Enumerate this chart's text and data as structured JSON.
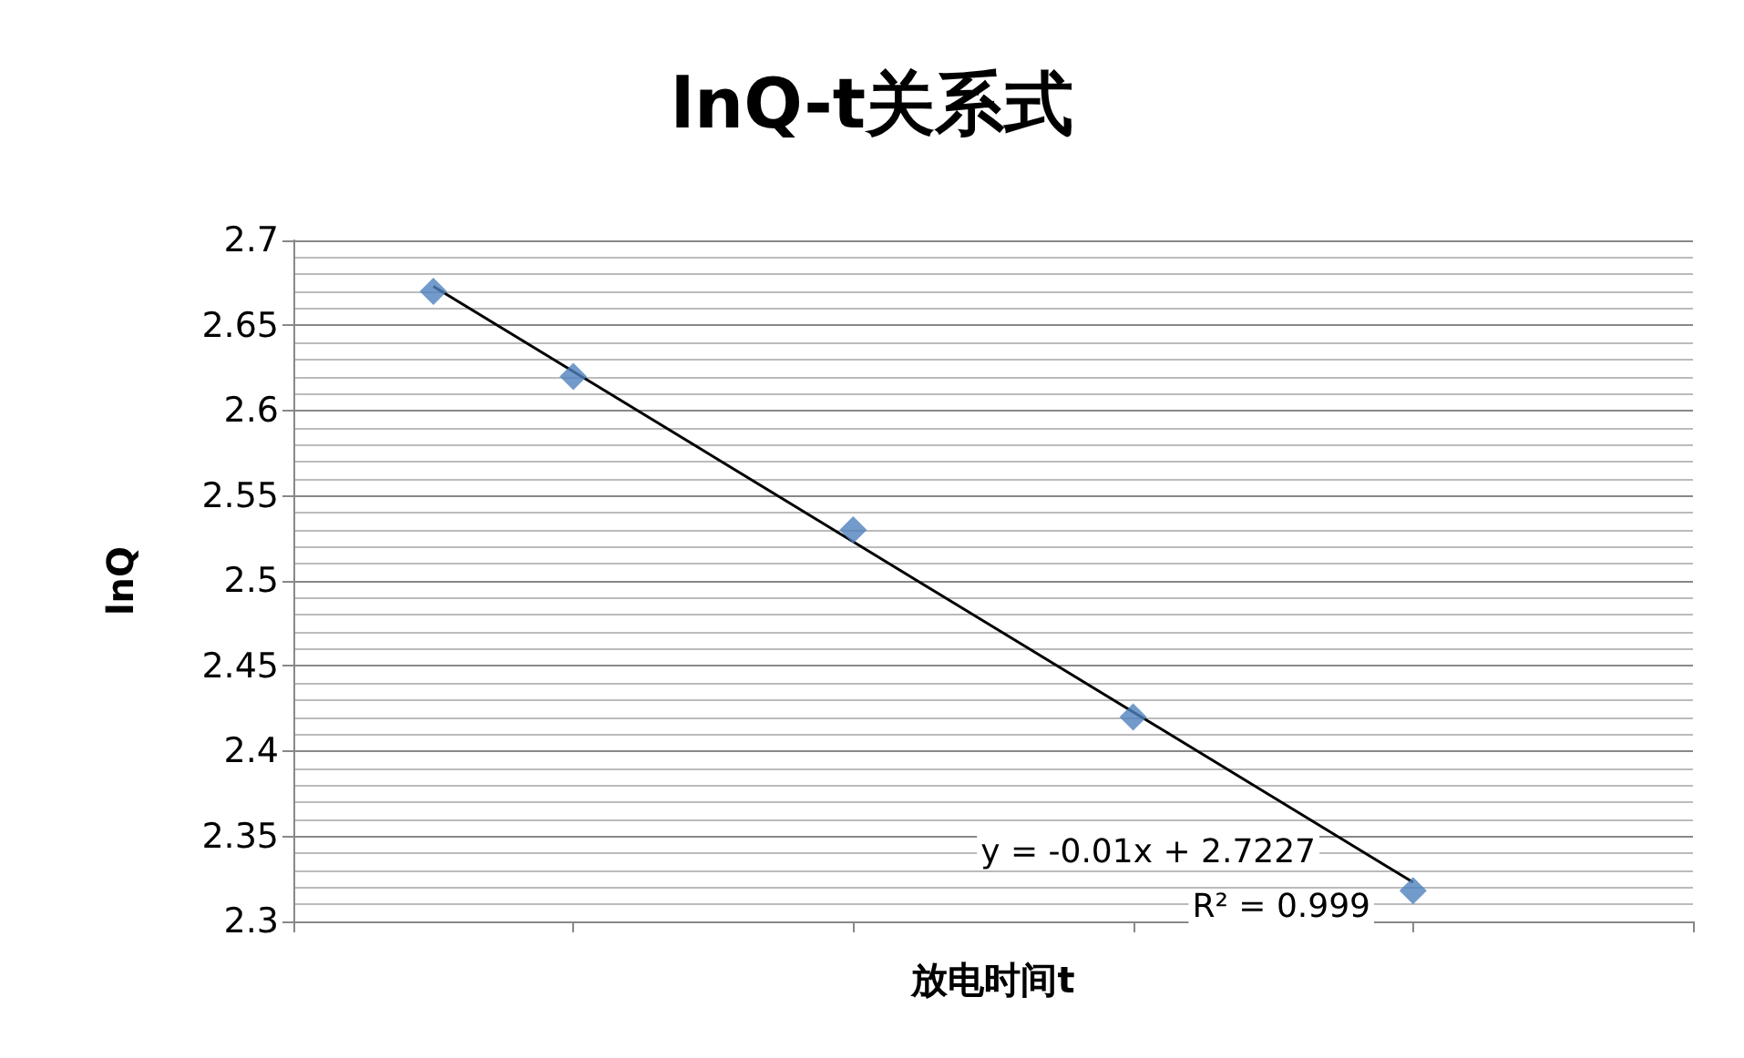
{
  "chart_data": {
    "type": "scatter",
    "title": "lnQ-t关系式",
    "xlabel": "放电时间t",
    "ylabel": "lnQ",
    "categories": [
      null,
      null,
      null,
      null,
      null,
      null,
      null,
      null,
      null,
      null,
      null
    ],
    "ylim": [
      2.3,
      2.7
    ],
    "yticks": [
      2.3,
      2.35,
      2.4,
      2.45,
      2.5,
      2.55,
      2.6,
      2.65,
      2.7
    ],
    "grid": "y",
    "tick_labels": "y",
    "series": [
      {
        "color": "#4f81bd",
        "marker": "diamond",
        "values": [
          null,
          2.67,
          2.62,
          null,
          2.53,
          null,
          2.42,
          null,
          2.318,
          null,
          null
        ]
      },
      {
        "type": "line",
        "color": "#000000",
        "marker": "none",
        "values": [
          null,
          2.673,
          2.623,
          2.573,
          2.523,
          2.473,
          2.423,
          2.373,
          2.323,
          null,
          null
        ]
      }
    ],
    "annotations": [
      "y = -0.01x + 2.7227",
      "R² = 0.999"
    ]
  }
}
